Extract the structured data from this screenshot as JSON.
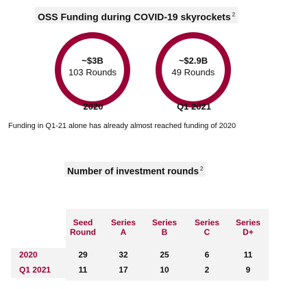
{
  "title": {
    "text": "OSS Funding during COVID-19 skyrockets",
    "note_ref": "2"
  },
  "period_2020": {
    "amount": "~$3B",
    "rounds": "103 Rounds",
    "label": "2020"
  },
  "period_q1_2021": {
    "amount": "~$2.9B",
    "rounds": "49 Rounds",
    "label": "Q1 2021"
  },
  "note": "Funding in Q1-21 alone has already almost reached funding of 2020",
  "rounds_table": {
    "title": "Number of investment rounds",
    "note_ref": "2",
    "columns": [
      {
        "line1": "Seed",
        "line2": "Round"
      },
      {
        "line1": "Series",
        "line2": "A"
      },
      {
        "line1": "Series",
        "line2": "B"
      },
      {
        "line1": "Series",
        "line2": "C"
      },
      {
        "line1": "Series",
        "line2": "D+"
      }
    ],
    "rows": [
      {
        "label": "2020",
        "values": [
          "29",
          "32",
          "25",
          "6",
          "11"
        ]
      },
      {
        "label": "Q1 2021",
        "values": [
          "11",
          "17",
          "10",
          "2",
          "9"
        ]
      }
    ]
  },
  "colors": {
    "accent": "#9b0036",
    "panel": "#f3f3f3"
  }
}
